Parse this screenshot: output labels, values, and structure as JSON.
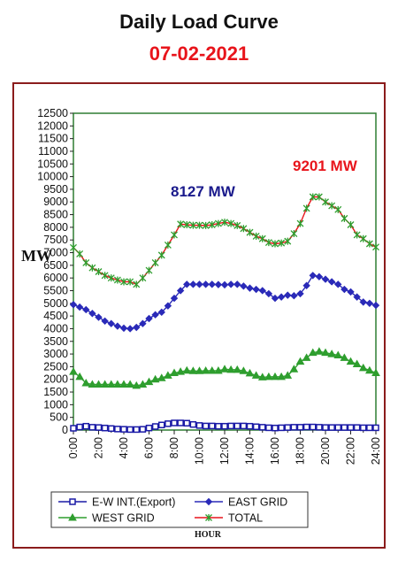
{
  "header": {
    "title": "Daily Load Curve",
    "date": "07-02-2021"
  },
  "colors": {
    "title": "#111111",
    "date": "#e8141b",
    "frame": "#8b1c1c",
    "plot_border": "#2e7d32",
    "ew_int": "#1a1aa6",
    "east": "#2a2ab8",
    "west": "#2e9e2e",
    "total_line": "#e8141b",
    "total_marker": "#2e9e2e",
    "peak_east_label": "#1a1a8c",
    "peak_total_label": "#e8141b"
  },
  "chart_data": {
    "type": "line",
    "ylabel": "MW",
    "xlabel": "HOUR",
    "ylim": [
      0,
      12500
    ],
    "yticks": [
      0,
      500,
      1000,
      1500,
      2000,
      2500,
      3000,
      3500,
      4000,
      4500,
      5000,
      5500,
      6000,
      6500,
      7000,
      7500,
      8000,
      8500,
      9000,
      9500,
      10000,
      10500,
      11000,
      11500,
      12000,
      12500
    ],
    "xticks": [
      "0:00",
      "2:00",
      "4:00",
      "6:00",
      "8:00",
      "10:00",
      "12:00",
      "14:00",
      "16:00",
      "18:00",
      "20:00",
      "22:00",
      "24:00"
    ],
    "grid": false,
    "legend_position": "bottom",
    "x": [
      0,
      0.5,
      1,
      1.5,
      2,
      2.5,
      3,
      3.5,
      4,
      4.5,
      5,
      5.5,
      6,
      6.5,
      7,
      7.5,
      8,
      8.5,
      9,
      9.5,
      10,
      10.5,
      11,
      11.5,
      12,
      12.5,
      13,
      13.5,
      14,
      14.5,
      15,
      15.5,
      16,
      16.5,
      17,
      17.5,
      18,
      18.5,
      19,
      19.5,
      20,
      20.5,
      21,
      21.5,
      22,
      22.5,
      23,
      23.5,
      24
    ],
    "series": [
      {
        "name": "E-W INT.(Export)",
        "marker": "square",
        "values": [
          70,
          120,
          150,
          110,
          100,
          80,
          60,
          40,
          30,
          20,
          20,
          30,
          80,
          140,
          200,
          250,
          280,
          280,
          270,
          220,
          180,
          160,
          160,
          150,
          150,
          160,
          160,
          160,
          150,
          130,
          110,
          90,
          80,
          90,
          100,
          110,
          110,
          120,
          120,
          110,
          100,
          100,
          100,
          100,
          100,
          100,
          90,
          90,
          90
        ]
      },
      {
        "name": "EAST GRID",
        "marker": "diamond",
        "values": [
          4950,
          4850,
          4750,
          4600,
          4450,
          4300,
          4200,
          4100,
          4020,
          4000,
          4050,
          4200,
          4400,
          4550,
          4650,
          4900,
          5200,
          5500,
          5750,
          5750,
          5750,
          5750,
          5750,
          5740,
          5730,
          5750,
          5750,
          5680,
          5600,
          5550,
          5500,
          5380,
          5200,
          5250,
          5320,
          5300,
          5380,
          5700,
          6100,
          6050,
          5950,
          5850,
          5750,
          5550,
          5450,
          5250,
          5050,
          5000,
          4920
        ]
      },
      {
        "name": "WEST GRID",
        "marker": "triangle",
        "values": [
          2300,
          2100,
          1850,
          1800,
          1800,
          1800,
          1800,
          1800,
          1800,
          1800,
          1750,
          1800,
          1900,
          2000,
          2050,
          2150,
          2250,
          2300,
          2350,
          2330,
          2330,
          2340,
          2340,
          2340,
          2400,
          2380,
          2380,
          2330,
          2240,
          2150,
          2080,
          2100,
          2100,
          2100,
          2150,
          2400,
          2700,
          2850,
          3050,
          3100,
          3050,
          3000,
          2950,
          2850,
          2700,
          2600,
          2450,
          2350,
          2250
        ]
      },
      {
        "name": "TOTAL",
        "marker": "star",
        "values": [
          7200,
          6950,
          6600,
          6400,
          6250,
          6100,
          6000,
          5920,
          5850,
          5850,
          5750,
          6000,
          6300,
          6600,
          6900,
          7300,
          7700,
          8127,
          8100,
          8080,
          8080,
          8070,
          8100,
          8150,
          8200,
          8150,
          8070,
          7950,
          7800,
          7650,
          7550,
          7400,
          7350,
          7380,
          7450,
          7750,
          8150,
          8750,
          9201,
          9200,
          9000,
          8850,
          8700,
          8350,
          8100,
          7700,
          7550,
          7350,
          7220
        ]
      }
    ],
    "annotations": [
      {
        "text": "8127 MW",
        "x": 9,
        "y": 8127
      },
      {
        "text": "9201 MW",
        "x": 19,
        "y": 9201
      }
    ]
  }
}
